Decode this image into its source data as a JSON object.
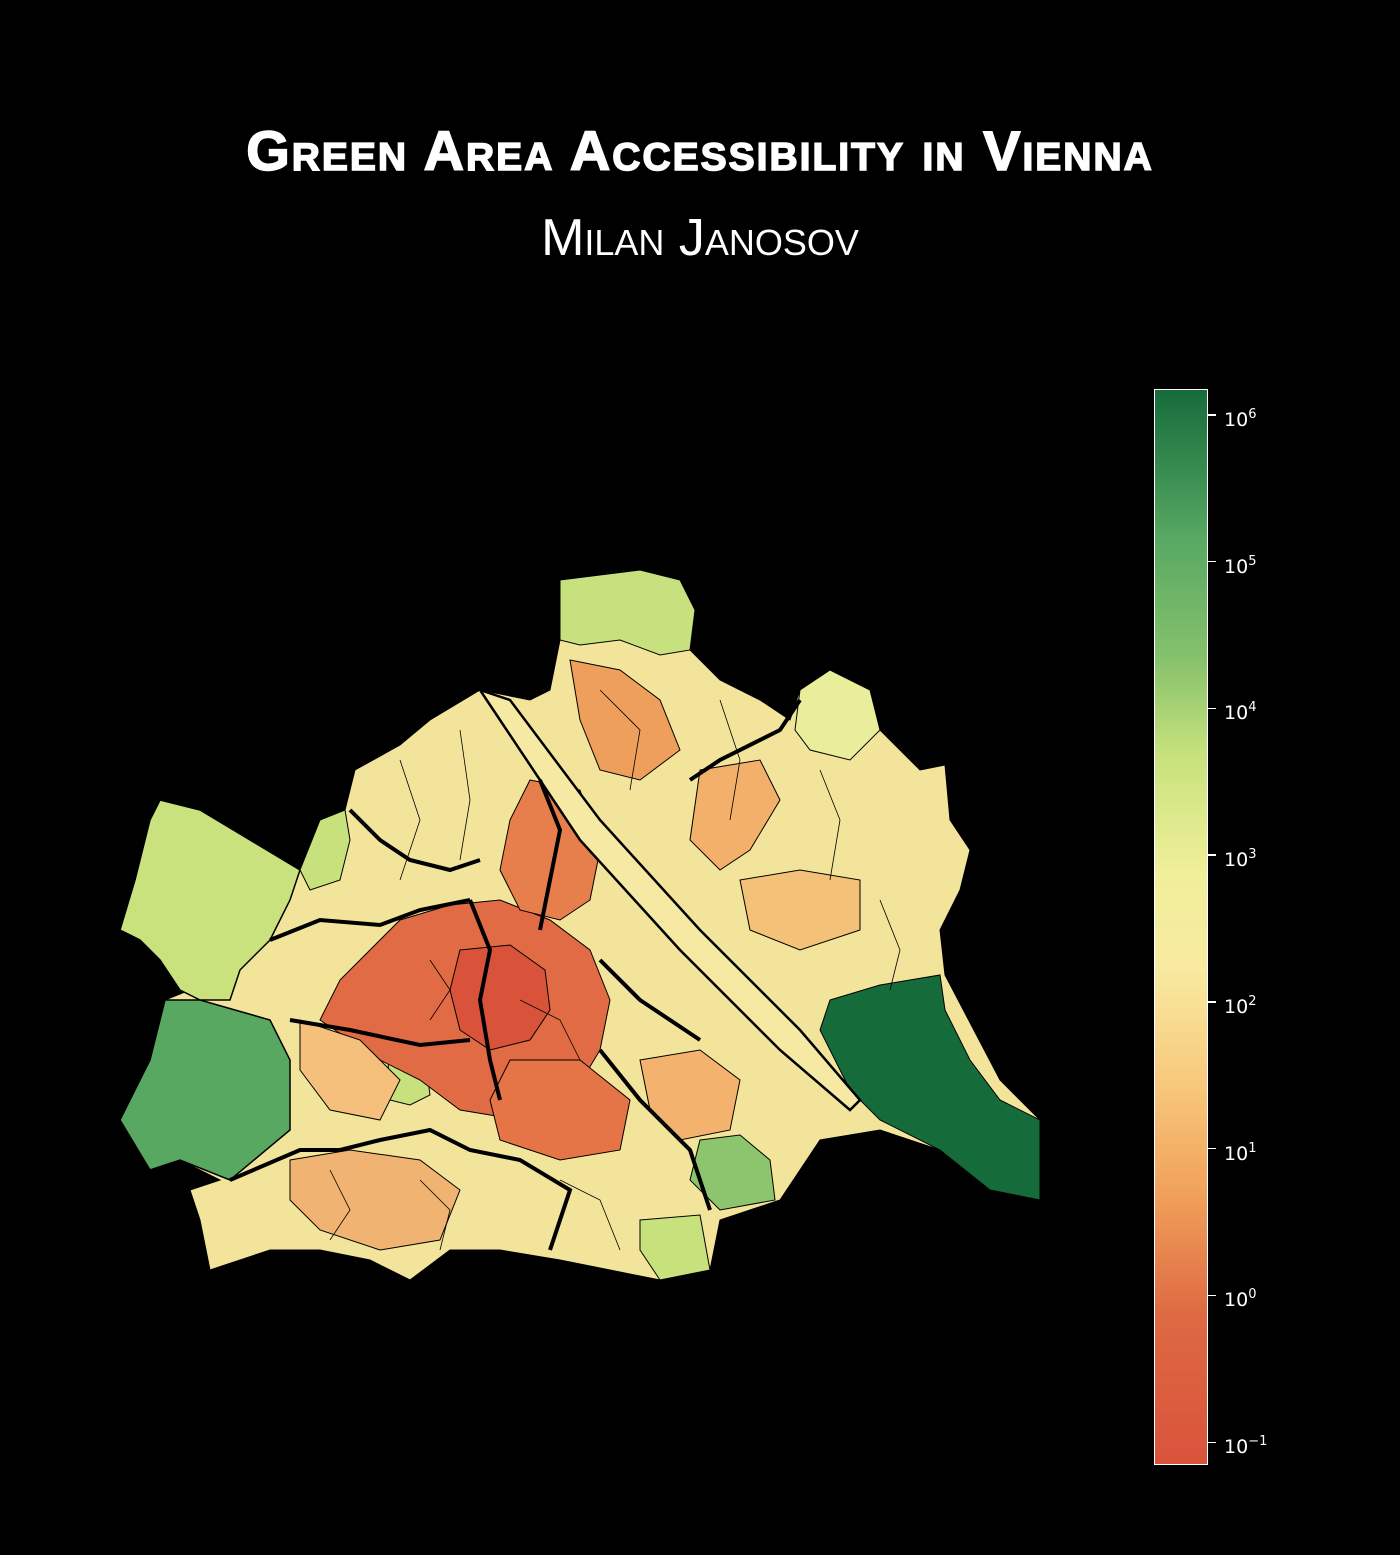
{
  "title": "Green Area Accessibility in Vienna",
  "subtitle": "Milan Janosov",
  "colors": {
    "background": "#000000",
    "low": "#d9533b",
    "mid": "#f8eaa0",
    "high": "#166b3b",
    "border": "#000000"
  },
  "colorbar": {
    "scale": "log",
    "range": [
      0.07,
      1500000
    ],
    "ticks": [
      {
        "base": "10",
        "exp": "−1",
        "value": 0.1
      },
      {
        "base": "10",
        "exp": "0",
        "value": 1
      },
      {
        "base": "10",
        "exp": "1",
        "value": 10
      },
      {
        "base": "10",
        "exp": "2",
        "value": 100
      },
      {
        "base": "10",
        "exp": "3",
        "value": 1000
      },
      {
        "base": "10",
        "exp": "4",
        "value": 10000
      },
      {
        "base": "10",
        "exp": "5",
        "value": 100000
      },
      {
        "base": "10",
        "exp": "6",
        "value": 1000000
      }
    ]
  }
}
